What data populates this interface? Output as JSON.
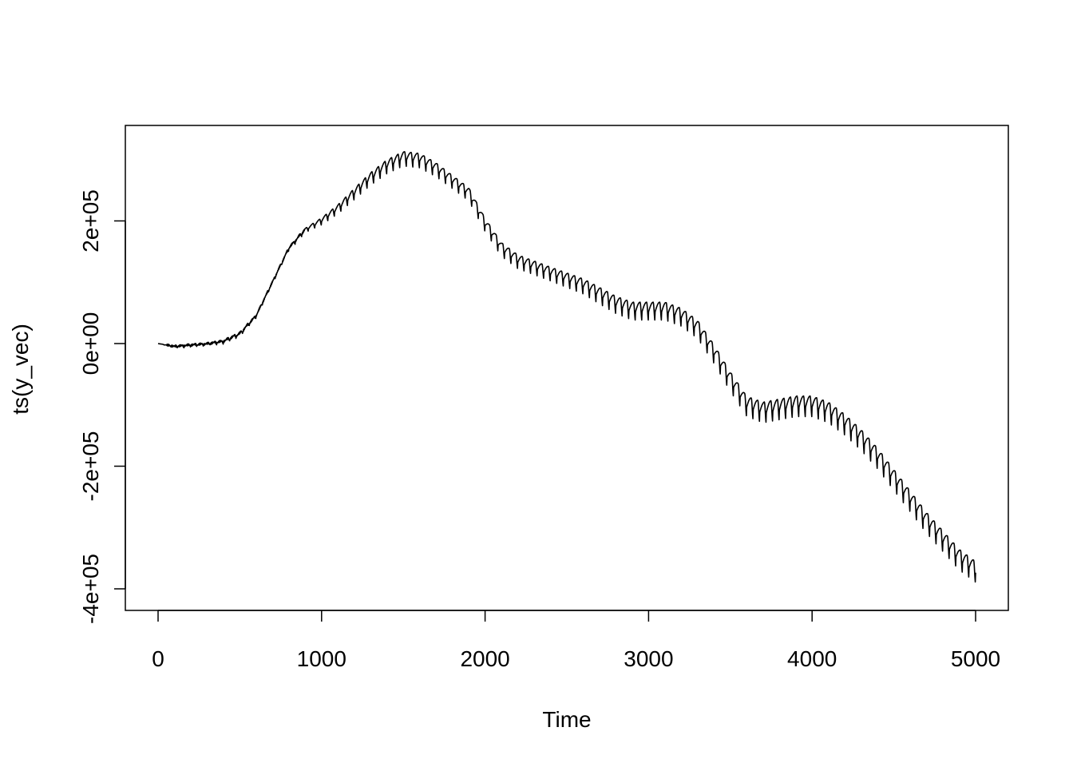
{
  "chart_data": {
    "type": "line",
    "title": "",
    "xlabel": "Time",
    "ylabel": "ts(y_vec)",
    "xlim": [
      0,
      5000
    ],
    "ylim": [
      -400000,
      320000
    ],
    "x_ticks": [
      0,
      1000,
      2000,
      3000,
      4000,
      5000
    ],
    "x_tick_labels": [
      "0",
      "1000",
      "2000",
      "3000",
      "4000",
      "5000"
    ],
    "y_ticks": [
      -400000,
      -200000,
      0,
      200000
    ],
    "y_tick_labels": [
      "-4e+05",
      "-2e+05",
      "0e+00",
      "2e+05"
    ],
    "grid": false,
    "legend": "none",
    "line_color": "#000000",
    "series": [
      {
        "x": [
          0,
          100,
          200,
          300,
          400,
          500,
          600,
          700,
          800,
          900,
          1000,
          1100,
          1200,
          1300,
          1400,
          1500,
          1600,
          1700,
          1800,
          1900,
          2000,
          2100,
          2200,
          2300,
          2400,
          2500,
          2600,
          2700,
          2800,
          2900,
          3000,
          3100,
          3200,
          3300,
          3400,
          3500,
          3600,
          3700,
          3800,
          3900,
          4000,
          4100,
          4200,
          4300,
          4400,
          4500,
          4600,
          4700,
          4800,
          4900,
          5000
        ],
        "y": [
          0,
          -5000,
          -3000,
          -1000,
          3000,
          15000,
          45000,
          100000,
          155000,
          185000,
          200000,
          220000,
          245000,
          270000,
          290000,
          303000,
          300000,
          285000,
          265000,
          245000,
          195000,
          155000,
          135000,
          125000,
          115000,
          105000,
          95000,
          80000,
          65000,
          55000,
          55000,
          55000,
          45000,
          25000,
          -15000,
          -60000,
          -100000,
          -110000,
          -105000,
          -100000,
          -100000,
          -110000,
          -130000,
          -155000,
          -185000,
          -220000,
          -255000,
          -290000,
          -320000,
          -350000,
          -370000
        ],
        "oscillation_period": 40,
        "oscillation_amplitude": [
          0,
          2000,
          3000,
          3000,
          4000,
          6000,
          3000,
          3000,
          4000,
          6000,
          10000,
          13000,
          16000,
          18000,
          20000,
          21000,
          21000,
          20000,
          19000,
          19000,
          19000,
          20000,
          20000,
          20000,
          20000,
          21000,
          22000,
          24000,
          25000,
          26000,
          26000,
          26000,
          26000,
          26000,
          27000,
          28000,
          29000,
          30000,
          30000,
          30000,
          30000,
          30000,
          30000,
          30000,
          30000,
          30000,
          30000,
          30000,
          30000,
          30000,
          30000
        ]
      }
    ]
  }
}
